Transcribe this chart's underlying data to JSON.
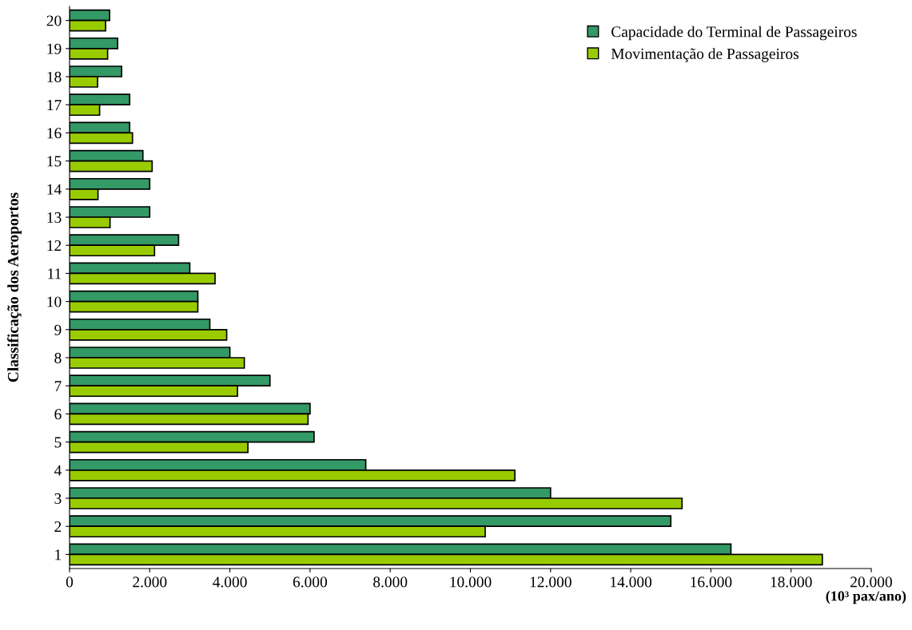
{
  "chart_data": {
    "type": "bar",
    "orientation": "horizontal",
    "categories": [
      "20",
      "19",
      "18",
      "17",
      "16",
      "15",
      "14",
      "13",
      "12",
      "11",
      "10",
      "9",
      "8",
      "7",
      "6",
      "5",
      "4",
      "3",
      "2",
      "1"
    ],
    "series": [
      {
        "name": "Capacidade do Terminal de Passageiros",
        "color": "#339966",
        "values": [
          1000,
          1200,
          1300,
          1500,
          1500,
          1830,
          2000,
          2000,
          2720,
          3000,
          3200,
          3500,
          4000,
          5000,
          6000,
          6100,
          7390,
          12000,
          15000,
          16500
        ]
      },
      {
        "name": "Movimentação de Passageiros",
        "color": "#99cc00",
        "values": [
          900,
          950,
          700,
          750,
          1570,
          2060,
          710,
          1010,
          2120,
          3630,
          3200,
          3920,
          4360,
          4190,
          5950,
          4450,
          11110,
          15280,
          10370,
          18780
        ]
      }
    ],
    "xlim": [
      0,
      20000
    ],
    "xticks": [
      0,
      {
        "value": 2000,
        "label": "2.000"
      },
      {
        "value": 4000,
        "label": "4.000"
      },
      {
        "value": 6000,
        "label": "6.000"
      },
      {
        "value": 8000,
        "label": "8.000"
      },
      {
        "value": 10000,
        "label": "10.000"
      },
      {
        "value": 12000,
        "label": "12.000"
      },
      {
        "value": 14000,
        "label": "14.000"
      },
      {
        "value": 16000,
        "label": "16.000"
      },
      {
        "value": 18000,
        "label": "18.000"
      },
      {
        "value": 20000,
        "label": "20.000"
      }
    ],
    "xlabel": "(10³ pax/ano)",
    "ylabel": "Classificação dos Aeroportos",
    "legend": "top right",
    "grid": false
  }
}
